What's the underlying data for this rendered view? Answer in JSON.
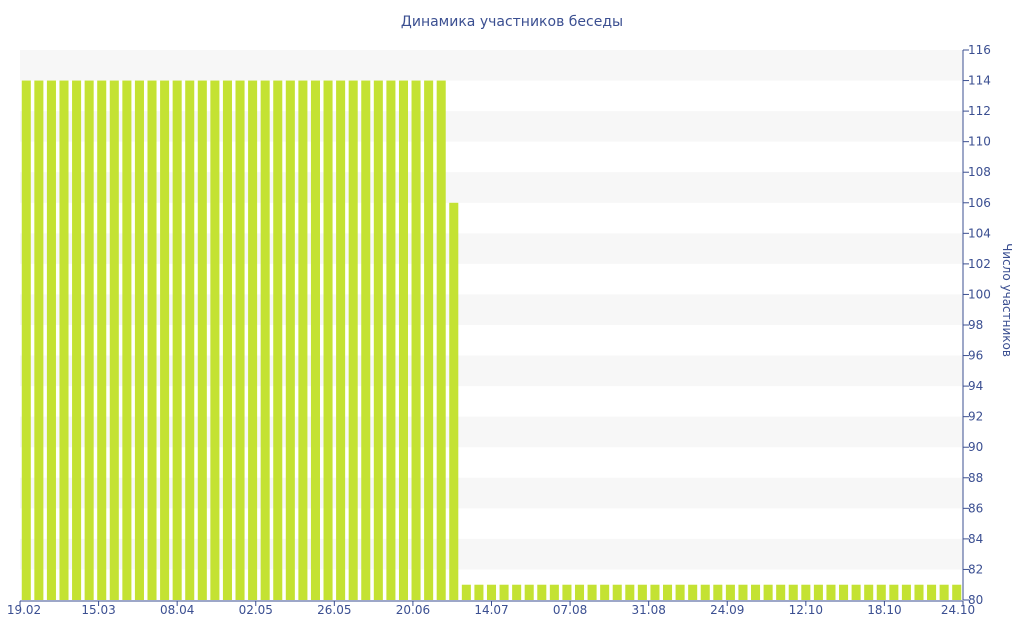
{
  "chart_data": {
    "type": "bar",
    "title": "Динамика участников беседы",
    "ylabel": "Число участников",
    "xlabel": "",
    "y_axis_position": "right",
    "ylim": [
      80,
      116
    ],
    "ytick_step": 2,
    "y_ticks": [
      "80",
      "82",
      "84",
      "86",
      "88",
      "90",
      "92",
      "94",
      "96",
      "98",
      "100",
      "102",
      "104",
      "106",
      "108",
      "110",
      "112",
      "114",
      "116"
    ],
    "x_tick_labels": [
      "19.02",
      "15.03",
      "08.04",
      "02.05",
      "26.05",
      "20.06",
      "14.07",
      "07.08",
      "31.08",
      "24.09",
      "12.10",
      "18.10",
      "24.10"
    ],
    "grid": "alternating horizontal bands",
    "legend": "none",
    "colors": {
      "bar": "#c4e233",
      "band": "#f7f7f7",
      "text": "#3b4f91",
      "axis": "#3b4f91"
    },
    "values": [
      114,
      114,
      114,
      114,
      114,
      114,
      114,
      114,
      114,
      114,
      114,
      114,
      114,
      114,
      114,
      114,
      114,
      114,
      114,
      114,
      114,
      114,
      114,
      114,
      114,
      114,
      114,
      114,
      114,
      114,
      114,
      114,
      114,
      114,
      106,
      81,
      81,
      81,
      81,
      81,
      81,
      81,
      81,
      81,
      81,
      81,
      81,
      81,
      81,
      81,
      81,
      81,
      81,
      81,
      81,
      81,
      81,
      81,
      81,
      81,
      81,
      81,
      81,
      81,
      81,
      81,
      81,
      81,
      81,
      81,
      81,
      81,
      81,
      81,
      81
    ]
  }
}
